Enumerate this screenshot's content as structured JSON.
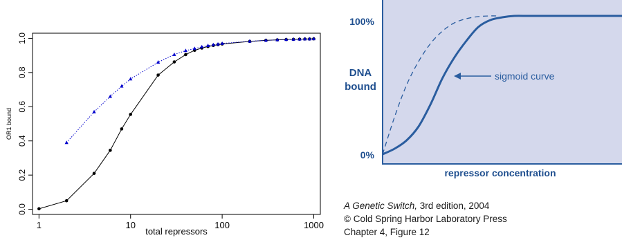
{
  "chart_data": [
    {
      "type": "scatter",
      "xlabel": "total repressors",
      "ylabel": "OR1 bound",
      "xscale": "log",
      "xlim": [
        0.85,
        1180
      ],
      "ylim": [
        -0.03,
        1.03
      ],
      "xticks": [
        1,
        10,
        100,
        1000
      ],
      "xtick_labels": [
        "1",
        "10",
        "100",
        "1000"
      ],
      "yticks": [
        0,
        0.2,
        0.4,
        0.6,
        0.8,
        1
      ],
      "ytick_labels": [
        "0.0",
        "0.2",
        "0.4",
        "0.6",
        "0.8",
        "1.0"
      ],
      "grid": false,
      "series": [
        {
          "style": "solid",
          "marker": "circle",
          "color": "#000000",
          "x": [
            1,
            2,
            4,
            6,
            8,
            10,
            20,
            30,
            40,
            50,
            60,
            70,
            80,
            90,
            100,
            200,
            300,
            400,
            500,
            600,
            700,
            800,
            900,
            1000
          ],
          "y": [
            0.003,
            0.05,
            0.21,
            0.345,
            0.47,
            0.555,
            0.785,
            0.862,
            0.905,
            0.93,
            0.943,
            0.952,
            0.958,
            0.963,
            0.967,
            0.982,
            0.988,
            0.991,
            0.993,
            0.994,
            0.995,
            0.996,
            0.996,
            0.997
          ]
        },
        {
          "style": "dotted",
          "marker": "triangle",
          "color": "#0000cc",
          "x": [
            2,
            4,
            6,
            8,
            10,
            20,
            30,
            40,
            50,
            60,
            70,
            80,
            90,
            100,
            200,
            300,
            400,
            500,
            600,
            700,
            800,
            900,
            1000
          ],
          "y": [
            0.39,
            0.57,
            0.66,
            0.72,
            0.762,
            0.86,
            0.905,
            0.928,
            0.94,
            0.95,
            0.957,
            0.962,
            0.966,
            0.97,
            0.983,
            0.988,
            0.991,
            0.993,
            0.994,
            0.995,
            0.996,
            0.996,
            0.997
          ]
        }
      ]
    },
    {
      "type": "line",
      "xlabel": "repressor concentration",
      "ylabel_lines": [
        "DNA",
        "bound"
      ],
      "yticks": [
        "100%",
        "0%"
      ],
      "annotation": "sigmoid curve",
      "background": "#d4d8ec",
      "color": "#2a5d9f",
      "label_color": "#1f4f8f",
      "series": [
        {
          "style": "solid",
          "x": [
            0,
            0.05,
            0.1,
            0.15,
            0.2,
            0.25,
            0.3,
            0.35,
            0.4,
            0.45,
            0.5,
            0.55,
            0.6,
            0.62,
            0.7,
            0.8,
            0.9,
            1.0
          ],
          "y": [
            0,
            0.04,
            0.1,
            0.2,
            0.36,
            0.55,
            0.7,
            0.82,
            0.92,
            0.97,
            0.99,
            1.0,
            1.0,
            1.0,
            1.0,
            1.0,
            1.0,
            1.0
          ]
        },
        {
          "style": "dashed",
          "x": [
            0,
            0.05,
            0.1,
            0.15,
            0.2,
            0.25,
            0.3,
            0.35,
            0.4,
            0.45,
            0.48
          ],
          "y": [
            0,
            0.27,
            0.5,
            0.67,
            0.8,
            0.89,
            0.95,
            0.98,
            0.995,
            1.0,
            1.0
          ]
        }
      ]
    }
  ],
  "caption": {
    "line1_title": "A Genetic Switch,",
    "line1_rest": " 3rd edition, 2004",
    "line2": "© Cold Spring Harbor Laboratory Press",
    "line3": "Chapter 4, Figure 12"
  }
}
